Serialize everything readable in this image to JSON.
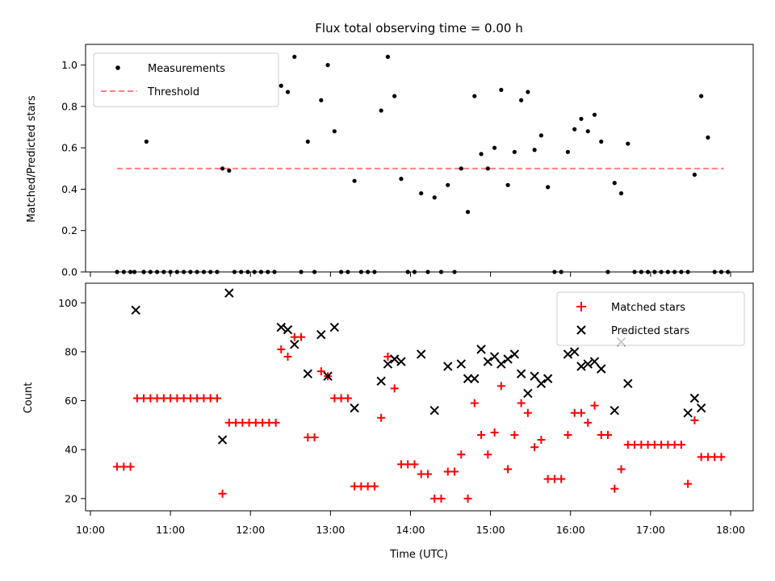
{
  "chart_data": [
    {
      "type": "scatter",
      "title": "Flux total observing time = 0.00 h",
      "xlabel": "",
      "ylabel": "Matched/Predicted stars",
      "xlim": [
        "10:00",
        "18:00"
      ],
      "ylim": [
        0,
        1.1
      ],
      "yticks": [
        "0.0",
        "0.2",
        "0.4",
        "0.6",
        "0.8",
        "1.0"
      ],
      "legend": {
        "placement": "top-left",
        "entries": [
          "Measurements",
          "Threshold"
        ]
      },
      "colors": {
        "measurements": "#000000",
        "threshold": "#ff8080"
      },
      "series": [
        {
          "name": "Measurements",
          "marker": "dot",
          "points": [
            [
              "10:20",
              0
            ],
            [
              "10:25",
              0
            ],
            [
              "10:30",
              0
            ],
            [
              "10:33",
              0
            ],
            [
              "10:42",
              0.63
            ],
            [
              "10:40",
              0
            ],
            [
              "10:40",
              0
            ],
            [
              "10:45",
              0
            ],
            [
              "10:50",
              0
            ],
            [
              "10:55",
              0
            ],
            [
              "11:00",
              0
            ],
            [
              "11:05",
              0
            ],
            [
              "11:10",
              0
            ],
            [
              "11:15",
              0
            ],
            [
              "11:20",
              0
            ],
            [
              "11:25",
              0
            ],
            [
              "11:30",
              0
            ],
            [
              "11:35",
              0
            ],
            [
              "11:39",
              0.5
            ],
            [
              "11:44",
              0.49
            ],
            [
              "11:48",
              0
            ],
            [
              "11:53",
              0
            ],
            [
              "11:58",
              0
            ],
            [
              "12:03",
              0
            ],
            [
              "12:08",
              0
            ],
            [
              "12:13",
              0
            ],
            [
              "12:18",
              0
            ],
            [
              "12:23",
              0.9
            ],
            [
              "12:28",
              0.87
            ],
            [
              "12:33",
              1.04
            ],
            [
              "12:38",
              0
            ],
            [
              "12:43",
              0.63
            ],
            [
              "12:48",
              0
            ],
            [
              "12:53",
              0.83
            ],
            [
              "12:58",
              1.0
            ],
            [
              "13:03",
              0.68
            ],
            [
              "13:08",
              0
            ],
            [
              "13:13",
              0
            ],
            [
              "13:18",
              0.44
            ],
            [
              "13:23",
              0
            ],
            [
              "13:28",
              0
            ],
            [
              "13:33",
              0
            ],
            [
              "13:38",
              0.78
            ],
            [
              "13:43",
              1.04
            ],
            [
              "13:48",
              0.85
            ],
            [
              "13:53",
              0.45
            ],
            [
              "13:58",
              0
            ],
            [
              "14:03",
              0
            ],
            [
              "14:08",
              0.38
            ],
            [
              "14:13",
              0
            ],
            [
              "14:18",
              0.36
            ],
            [
              "14:23",
              0
            ],
            [
              "14:28",
              0.42
            ],
            [
              "14:33",
              0
            ],
            [
              "14:38",
              0.5
            ],
            [
              "14:43",
              0.29
            ],
            [
              "14:48",
              0.85
            ],
            [
              "14:53",
              0.57
            ],
            [
              "14:58",
              0.5
            ],
            [
              "15:03",
              0.6
            ],
            [
              "15:08",
              0.88
            ],
            [
              "15:13",
              0.42
            ],
            [
              "15:18",
              0.58
            ],
            [
              "15:23",
              0.83
            ],
            [
              "15:28",
              0.87
            ],
            [
              "15:33",
              0.59
            ],
            [
              "15:38",
              0.66
            ],
            [
              "15:43",
              0.41
            ],
            [
              "15:48",
              0
            ],
            [
              "15:53",
              0
            ],
            [
              "15:58",
              0.58
            ],
            [
              "16:03",
              0.69
            ],
            [
              "16:08",
              0.74
            ],
            [
              "16:13",
              0.68
            ],
            [
              "16:18",
              0.76
            ],
            [
              "16:23",
              0.63
            ],
            [
              "16:28",
              0
            ],
            [
              "16:33",
              0.43
            ],
            [
              "16:38",
              0.38
            ],
            [
              "16:43",
              0.62
            ],
            [
              "16:48",
              0
            ],
            [
              "16:53",
              0
            ],
            [
              "16:58",
              0
            ],
            [
              "17:03",
              0
            ],
            [
              "17:08",
              0
            ],
            [
              "17:13",
              0
            ],
            [
              "17:18",
              0
            ],
            [
              "17:23",
              0
            ],
            [
              "17:28",
              0
            ],
            [
              "17:33",
              0.47
            ],
            [
              "17:38",
              0.85
            ],
            [
              "17:43",
              0.65
            ],
            [
              "17:48",
              0
            ],
            [
              "17:53",
              0
            ],
            [
              "17:58",
              0
            ]
          ]
        },
        {
          "name": "Threshold",
          "style": "dashed",
          "x": [
            "10:20",
            "17:55"
          ],
          "y": [
            0.5,
            0.5
          ]
        }
      ]
    },
    {
      "type": "scatter",
      "title": "",
      "xlabel": "Time (UTC)",
      "ylabel": "Count",
      "xlim": [
        "10:00",
        "18:00"
      ],
      "ylim": [
        15,
        108
      ],
      "yticks": [
        "20",
        "40",
        "60",
        "80",
        "100"
      ],
      "xticks": [
        "10:00",
        "11:00",
        "12:00",
        "13:00",
        "14:00",
        "15:00",
        "16:00",
        "17:00",
        "18:00"
      ],
      "legend": {
        "placement": "top-right",
        "entries": [
          "Matched stars",
          "Predicted stars"
        ]
      },
      "colors": {
        "matched": "#ff0000",
        "predicted": "#000000"
      },
      "series": [
        {
          "name": "Matched stars",
          "marker": "plus",
          "points": [
            [
              "10:20",
              33
            ],
            [
              "10:25",
              33
            ],
            [
              "10:30",
              33
            ],
            [
              "10:35",
              61
            ],
            [
              "10:40",
              61
            ],
            [
              "10:45",
              61
            ],
            [
              "10:50",
              61
            ],
            [
              "10:55",
              61
            ],
            [
              "11:00",
              61
            ],
            [
              "11:05",
              61
            ],
            [
              "11:10",
              61
            ],
            [
              "11:15",
              61
            ],
            [
              "11:20",
              61
            ],
            [
              "11:25",
              61
            ],
            [
              "11:30",
              61
            ],
            [
              "11:35",
              61
            ],
            [
              "11:39",
              22
            ],
            [
              "11:44",
              51
            ],
            [
              "11:49",
              51
            ],
            [
              "11:54",
              51
            ],
            [
              "11:59",
              51
            ],
            [
              "12:04",
              51
            ],
            [
              "12:09",
              51
            ],
            [
              "12:14",
              51
            ],
            [
              "12:19",
              51
            ],
            [
              "12:23",
              81
            ],
            [
              "12:28",
              78
            ],
            [
              "12:33",
              86
            ],
            [
              "12:38",
              86
            ],
            [
              "12:43",
              45
            ],
            [
              "12:48",
              45
            ],
            [
              "12:53",
              72
            ],
            [
              "12:58",
              70
            ],
            [
              "13:03",
              61
            ],
            [
              "13:08",
              61
            ],
            [
              "13:13",
              61
            ],
            [
              "13:18",
              25
            ],
            [
              "13:23",
              25
            ],
            [
              "13:28",
              25
            ],
            [
              "13:33",
              25
            ],
            [
              "13:38",
              53
            ],
            [
              "13:43",
              78
            ],
            [
              "13:48",
              65
            ],
            [
              "13:53",
              34
            ],
            [
              "13:58",
              34
            ],
            [
              "14:03",
              34
            ],
            [
              "14:08",
              30
            ],
            [
              "14:13",
              30
            ],
            [
              "14:18",
              20
            ],
            [
              "14:23",
              20
            ],
            [
              "14:28",
              31
            ],
            [
              "14:33",
              31
            ],
            [
              "14:38",
              38
            ],
            [
              "14:43",
              20
            ],
            [
              "14:48",
              59
            ],
            [
              "14:53",
              46
            ],
            [
              "14:58",
              38
            ],
            [
              "15:03",
              47
            ],
            [
              "15:08",
              66
            ],
            [
              "15:13",
              32
            ],
            [
              "15:18",
              46
            ],
            [
              "15:23",
              59
            ],
            [
              "15:28",
              55
            ],
            [
              "15:33",
              41
            ],
            [
              "15:38",
              44
            ],
            [
              "15:43",
              28
            ],
            [
              "15:48",
              28
            ],
            [
              "15:53",
              28
            ],
            [
              "15:58",
              46
            ],
            [
              "16:03",
              55
            ],
            [
              "16:08",
              55
            ],
            [
              "16:13",
              51
            ],
            [
              "16:18",
              58
            ],
            [
              "16:23",
              46
            ],
            [
              "16:28",
              46
            ],
            [
              "16:33",
              24
            ],
            [
              "16:38",
              32
            ],
            [
              "16:43",
              42
            ],
            [
              "16:48",
              42
            ],
            [
              "16:53",
              42
            ],
            [
              "16:58",
              42
            ],
            [
              "17:03",
              42
            ],
            [
              "17:08",
              42
            ],
            [
              "17:13",
              42
            ],
            [
              "17:18",
              42
            ],
            [
              "17:23",
              42
            ],
            [
              "17:28",
              26
            ],
            [
              "17:33",
              52
            ],
            [
              "17:38",
              37
            ],
            [
              "17:43",
              37
            ],
            [
              "17:48",
              37
            ],
            [
              "17:53",
              37
            ]
          ]
        },
        {
          "name": "Predicted stars",
          "marker": "x",
          "points": [
            [
              "10:34",
              97
            ],
            [
              "11:39",
              44
            ],
            [
              "11:44",
              104
            ],
            [
              "12:23",
              90
            ],
            [
              "12:28",
              89
            ],
            [
              "12:33",
              83
            ],
            [
              "12:43",
              71
            ],
            [
              "12:53",
              87
            ],
            [
              "12:58",
              70
            ],
            [
              "13:03",
              90
            ],
            [
              "13:18",
              57
            ],
            [
              "13:38",
              68
            ],
            [
              "13:43",
              75
            ],
            [
              "13:48",
              77
            ],
            [
              "13:53",
              76
            ],
            [
              "14:08",
              79
            ],
            [
              "14:18",
              56
            ],
            [
              "14:28",
              74
            ],
            [
              "14:38",
              75
            ],
            [
              "14:43",
              69
            ],
            [
              "14:48",
              69
            ],
            [
              "14:53",
              81
            ],
            [
              "14:58",
              76
            ],
            [
              "15:03",
              78
            ],
            [
              "15:08",
              75
            ],
            [
              "15:13",
              77
            ],
            [
              "15:18",
              79
            ],
            [
              "15:23",
              71
            ],
            [
              "15:28",
              63
            ],
            [
              "15:33",
              70
            ],
            [
              "15:38",
              67
            ],
            [
              "15:43",
              69
            ],
            [
              "15:58",
              79
            ],
            [
              "16:03",
              80
            ],
            [
              "16:08",
              74
            ],
            [
              "16:13",
              75
            ],
            [
              "16:18",
              76
            ],
            [
              "16:23",
              73
            ],
            [
              "16:33",
              56
            ],
            [
              "16:38",
              84
            ],
            [
              "16:43",
              67
            ],
            [
              "17:28",
              55
            ],
            [
              "17:33",
              61
            ],
            [
              "17:38",
              57
            ]
          ]
        }
      ]
    }
  ]
}
